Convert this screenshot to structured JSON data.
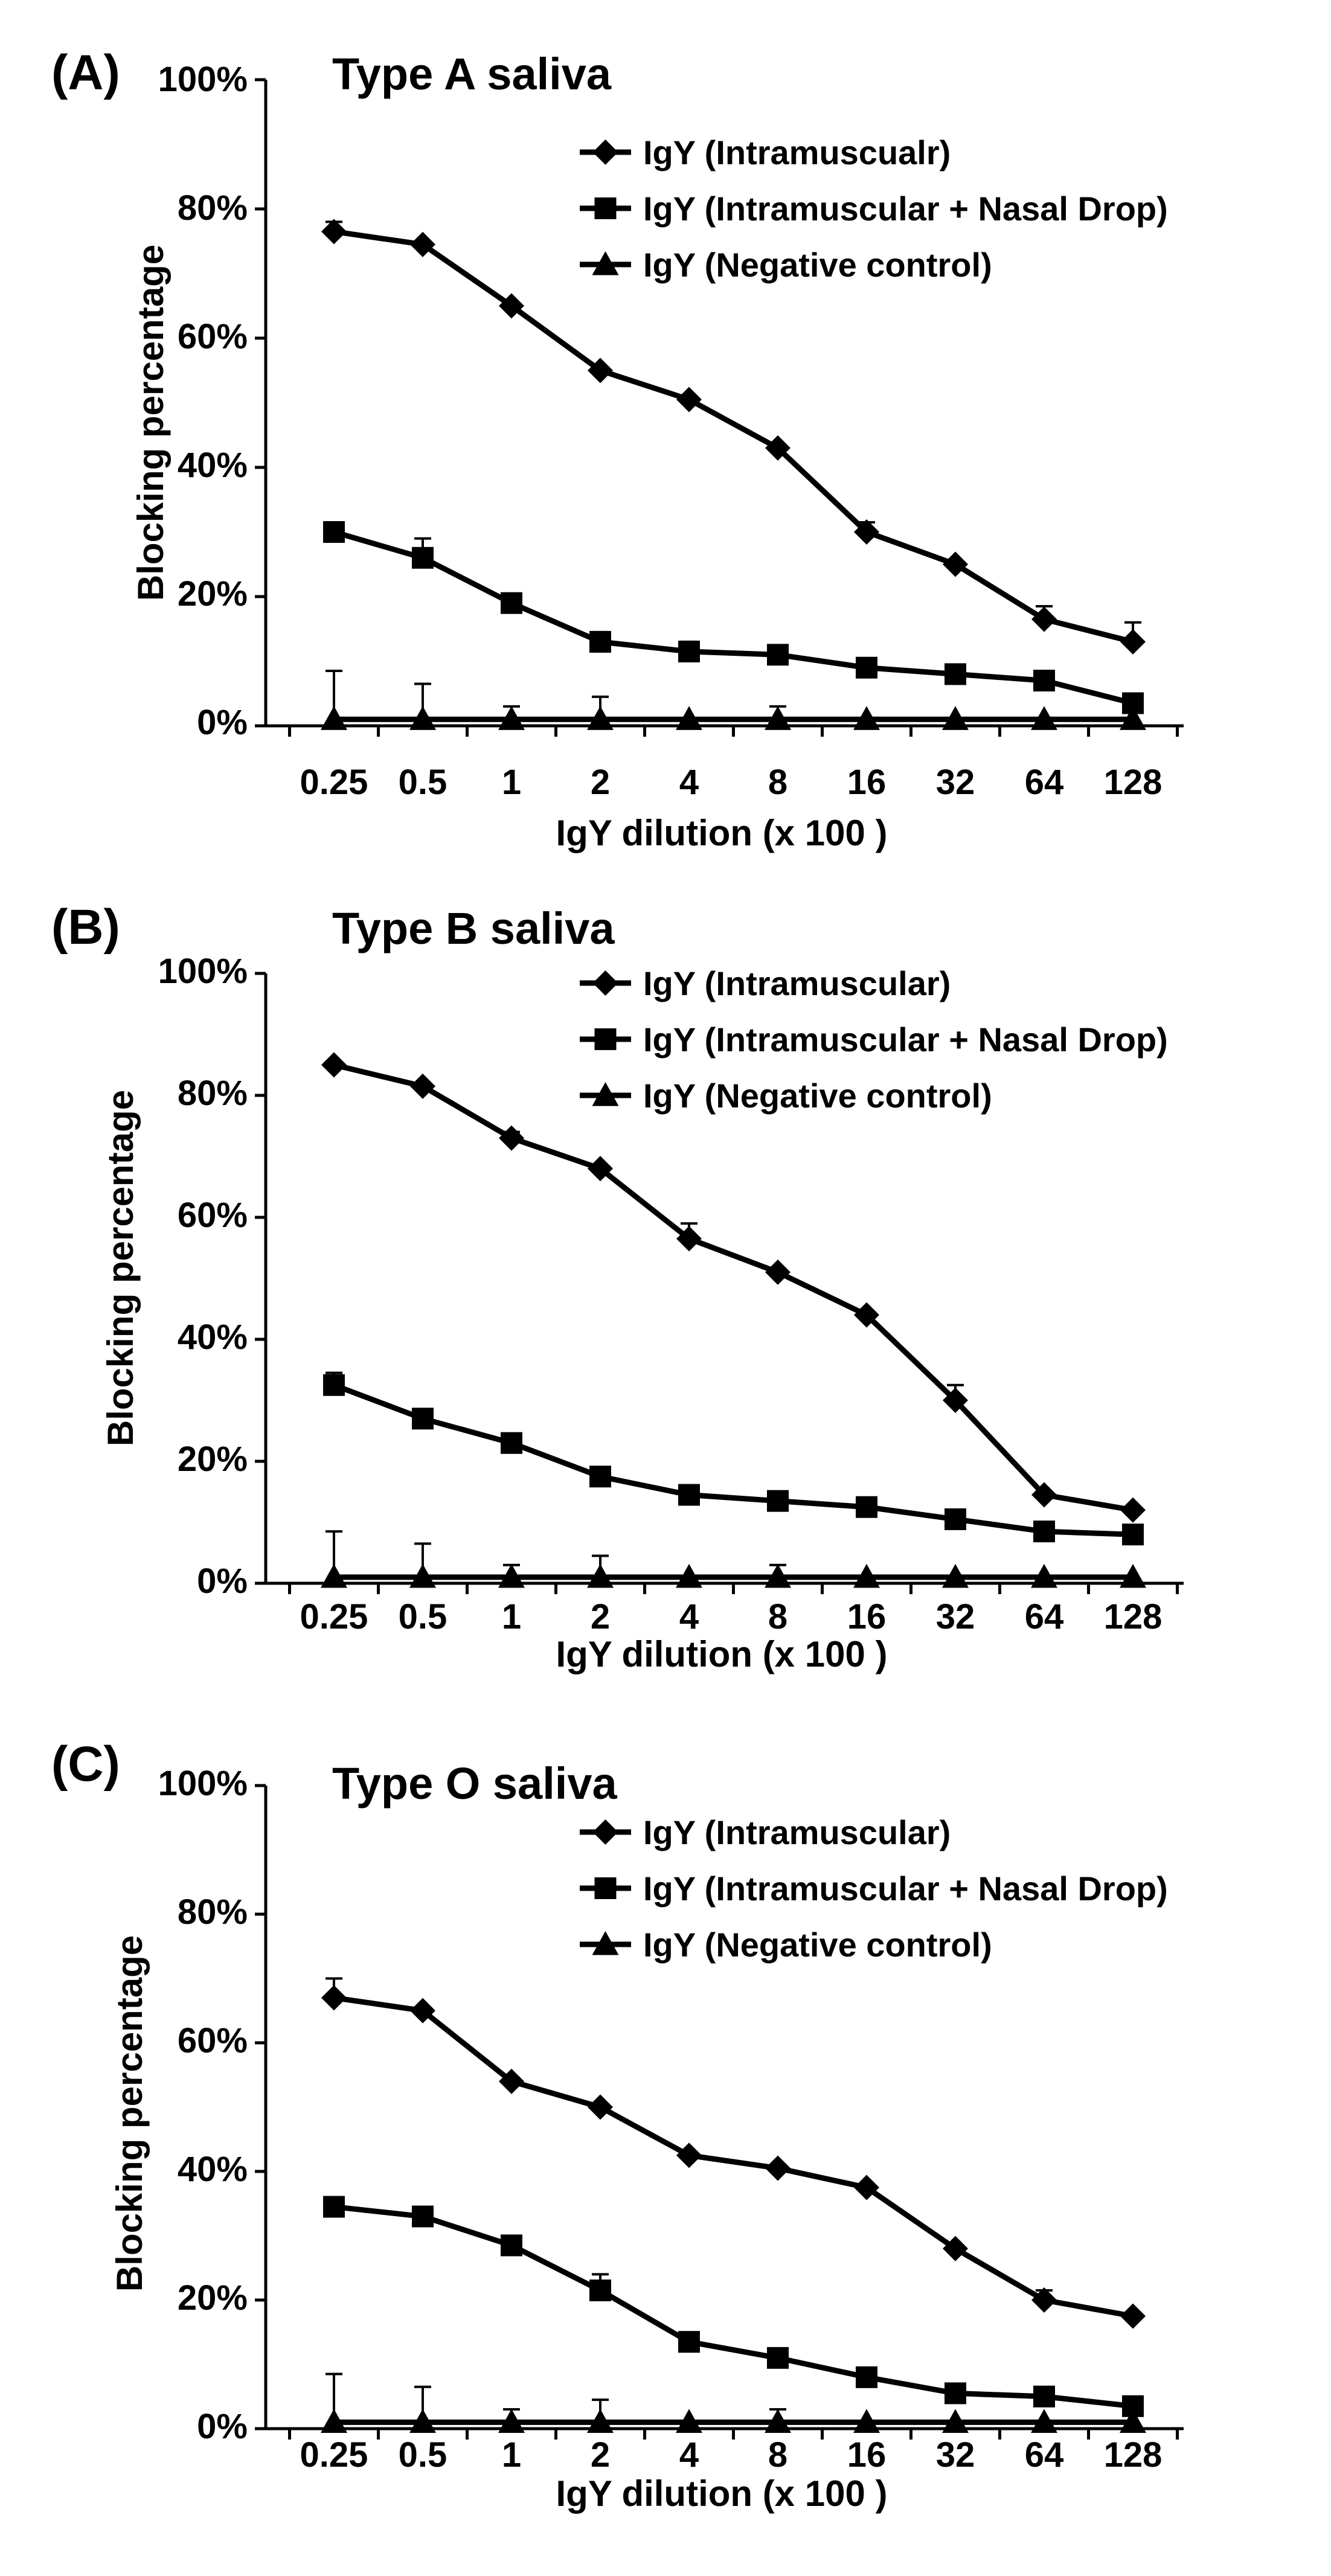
{
  "chart_data": [
    {
      "type": "line",
      "panel_label": "(A)",
      "title": "Type A saliva",
      "xlabel": "IgY dilution (x 100 )",
      "ylabel": "Blocking percentage",
      "categories": [
        "0.25",
        "0.5",
        "1",
        "2",
        "4",
        "8",
        "16",
        "32",
        "64",
        "128"
      ],
      "ylim": [
        0,
        100
      ],
      "yticks": [
        "0%",
        "20%",
        "40%",
        "60%",
        "80%",
        "100%"
      ],
      "legend_position": "top-right",
      "grid": false,
      "series": [
        {
          "name": "IgY (Intramuscualr)",
          "marker": "diamond",
          "values": [
            76.5,
            74.5,
            65,
            55,
            50.5,
            43,
            30,
            25,
            16.5,
            13
          ],
          "errors": [
            1.5,
            0.5,
            0.5,
            0.5,
            0.5,
            0.5,
            1.5,
            0.5,
            2,
            3
          ]
        },
        {
          "name": "IgY (Intramuscular + Nasal Drop)",
          "marker": "square",
          "values": [
            30,
            26,
            19,
            13,
            11.5,
            11,
            9,
            8,
            7,
            3.5
          ],
          "errors": [
            1,
            3,
            1,
            1.5,
            1.5,
            0.5,
            0.5,
            0.5,
            0.5,
            0.5
          ]
        },
        {
          "name": "IgY (Negative control)",
          "marker": "triangle",
          "values": [
            1,
            1,
            1,
            1,
            1,
            1,
            1,
            1,
            1,
            1
          ],
          "errors": [
            7.5,
            5.5,
            2,
            3.5,
            0.5,
            2,
            0.5,
            0.5,
            0.5,
            0.5
          ]
        }
      ]
    },
    {
      "type": "line",
      "panel_label": "(B)",
      "title": "Type B saliva",
      "xlabel": "IgY dilution (x 100 )",
      "ylabel": "Blocking percentage",
      "categories": [
        "0.25",
        "0.5",
        "1",
        "2",
        "4",
        "8",
        "16",
        "32",
        "64",
        "128"
      ],
      "ylim": [
        0,
        100
      ],
      "yticks": [
        "0%",
        "20%",
        "40%",
        "60%",
        "80%",
        "100%"
      ],
      "legend_position": "top-right",
      "grid": false,
      "series": [
        {
          "name": "IgY (Intramuscular)",
          "marker": "diamond",
          "values": [
            85,
            81.5,
            73,
            68,
            56.5,
            51,
            44,
            30,
            14.5,
            12
          ],
          "errors": [
            0.5,
            0.5,
            1,
            0.5,
            2.5,
            0.5,
            0.5,
            2.5,
            0.5,
            0.5
          ]
        },
        {
          "name": "IgY (Intramuscular + Nasal Drop)",
          "marker": "square",
          "values": [
            32.5,
            27,
            23,
            17.5,
            14.5,
            13.5,
            12.5,
            10.5,
            8.5,
            8
          ],
          "errors": [
            2,
            0.5,
            0.5,
            1,
            0.5,
            0.5,
            0.5,
            0.5,
            0.5,
            0.5
          ]
        },
        {
          "name": "IgY (Negative control)",
          "marker": "triangle",
          "values": [
            1,
            1,
            1,
            1,
            1,
            1,
            1,
            1,
            1,
            1
          ],
          "errors": [
            7.5,
            5.5,
            2,
            3.5,
            0.5,
            2,
            0.5,
            0.5,
            0.5,
            0.5
          ]
        }
      ]
    },
    {
      "type": "line",
      "panel_label": "(C)",
      "title": "Type O saliva",
      "xlabel": "IgY dilution (x 100 )",
      "ylabel": "Blocking percentage",
      "categories": [
        "0.25",
        "0.5",
        "1",
        "2",
        "4",
        "8",
        "16",
        "32",
        "64",
        "128"
      ],
      "ylim": [
        0,
        100
      ],
      "yticks": [
        "0%",
        "20%",
        "40%",
        "60%",
        "80%",
        "100%"
      ],
      "legend_position": "top-right",
      "grid": false,
      "series": [
        {
          "name": "IgY (Intramuscular)",
          "marker": "diamond",
          "values": [
            67,
            65,
            54,
            50,
            42.5,
            40.5,
            37.5,
            28,
            20,
            17.5
          ],
          "errors": [
            3,
            0.5,
            0.5,
            0.5,
            0.5,
            0.5,
            0.5,
            0.5,
            1.5,
            0.5
          ]
        },
        {
          "name": "IgY (Intramuscular + Nasal Drop)",
          "marker": "square",
          "values": [
            34.5,
            33,
            28.5,
            21.5,
            13.5,
            11,
            8,
            5.5,
            5,
            3.5
          ],
          "errors": [
            0.5,
            0.5,
            0.5,
            2.5,
            0.5,
            0.5,
            0.5,
            0.5,
            0.5,
            0.5
          ]
        },
        {
          "name": "IgY (Negative control)",
          "marker": "triangle",
          "values": [
            1,
            1,
            1,
            1,
            1,
            1,
            1,
            1,
            1,
            1
          ],
          "errors": [
            7.5,
            5.5,
            2,
            3.5,
            0.5,
            2,
            0.5,
            0.5,
            0.5,
            0.5
          ]
        }
      ]
    }
  ]
}
